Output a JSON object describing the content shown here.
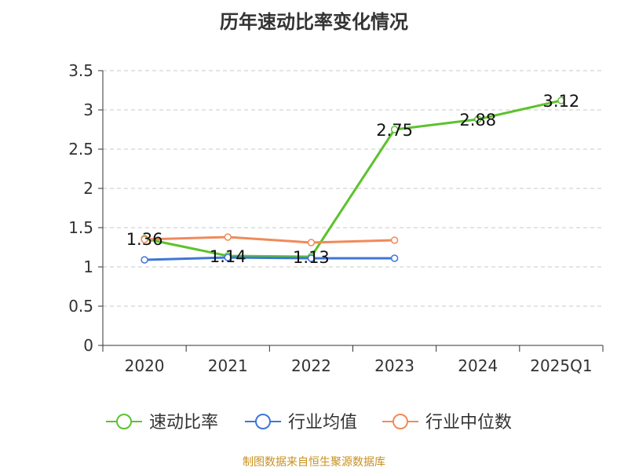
{
  "chart_data": {
    "type": "line",
    "title": "历年速动比率变化情况",
    "categories": [
      "2020",
      "2021",
      "2022",
      "2023",
      "2024",
      "2025Q1"
    ],
    "ylim": [
      0,
      3.5
    ],
    "yticks": [
      "0",
      "0.5",
      "1",
      "1.5",
      "2",
      "2.5",
      "3",
      "3.5"
    ],
    "grid": true,
    "legend_position": "bottom",
    "series": [
      {
        "name": "速动比率",
        "color": "#5cc22e",
        "values": [
          1.36,
          1.14,
          1.13,
          2.75,
          2.88,
          3.12
        ],
        "labels": [
          "1.36",
          "1.14",
          "1.13",
          "2.75",
          "2.88",
          "3.12"
        ]
      },
      {
        "name": "行业均值",
        "color": "#3f76d8",
        "values": [
          1.09,
          1.12,
          1.11,
          1.11,
          null,
          null
        ],
        "labels": null
      },
      {
        "name": "行业中位数",
        "color": "#f08a5a",
        "values": [
          1.35,
          1.38,
          1.31,
          1.34,
          null,
          null
        ],
        "labels": null
      }
    ]
  },
  "source_note": "制图数据来自恒生聚源数据库"
}
